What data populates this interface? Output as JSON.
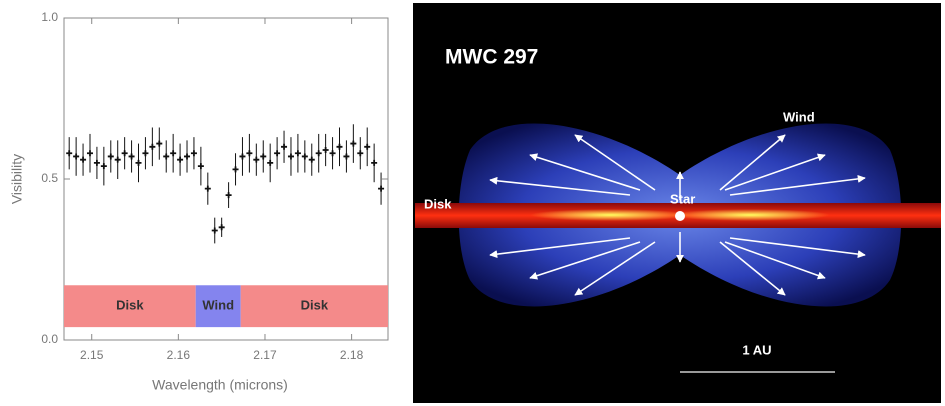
{
  "chart_data": {
    "type": "errorbar",
    "xlabel": "Wavelength (microns)",
    "ylabel": "Visibility",
    "xlim": [
      2.1468,
      2.1842
    ],
    "xticks": [
      2.15,
      2.16,
      2.17,
      2.18
    ],
    "ylim": [
      0,
      1
    ],
    "yticks": [
      {
        "value": 0,
        "label": "0.0"
      },
      0.5,
      {
        "value": 1,
        "label": "1.0"
      }
    ],
    "color": "#111111",
    "x": [
      2.1474,
      2.1482,
      2.149,
      2.1498,
      2.1506,
      2.1514,
      2.1522,
      2.153,
      2.1538,
      2.1546,
      2.1554,
      2.1562,
      2.157,
      2.1578,
      2.1586,
      2.1594,
      2.1602,
      2.161,
      2.1618,
      2.1626,
      2.1634,
      2.1642,
      2.165,
      2.1658,
      2.1666,
      2.1674,
      2.1682,
      2.169,
      2.1698,
      2.1706,
      2.1714,
      2.1722,
      2.173,
      2.1738,
      2.1746,
      2.1754,
      2.1762,
      2.177,
      2.1778,
      2.1786,
      2.1794,
      2.1802,
      2.181,
      2.1818,
      2.1826,
      2.1834
    ],
    "values": [
      0.58,
      0.57,
      0.56,
      0.58,
      0.55,
      0.54,
      0.57,
      0.56,
      0.58,
      0.57,
      0.55,
      0.58,
      0.6,
      0.61,
      0.57,
      0.58,
      0.56,
      0.57,
      0.58,
      0.54,
      0.47,
      0.34,
      0.35,
      0.45,
      0.53,
      0.57,
      0.58,
      0.56,
      0.57,
      0.55,
      0.58,
      0.6,
      0.57,
      0.58,
      0.57,
      0.56,
      0.58,
      0.59,
      0.58,
      0.6,
      0.57,
      0.61,
      0.58,
      0.6,
      0.55,
      0.47
    ],
    "errors": [
      0.05,
      0.06,
      0.05,
      0.06,
      0.05,
      0.06,
      0.05,
      0.06,
      0.05,
      0.05,
      0.06,
      0.05,
      0.06,
      0.05,
      0.05,
      0.06,
      0.05,
      0.05,
      0.05,
      0.06,
      0.05,
      0.04,
      0.03,
      0.04,
      0.05,
      0.06,
      0.06,
      0.05,
      0.05,
      0.06,
      0.05,
      0.05,
      0.06,
      0.06,
      0.05,
      0.05,
      0.06,
      0.05,
      0.05,
      0.06,
      0.05,
      0.06,
      0.05,
      0.06,
      0.06,
      0.05
    ],
    "region_ylim": [
      0.04,
      0.17
    ],
    "regions": [
      {
        "label": "Disk",
        "x": [
          2.1468,
          2.162
        ],
        "color": "#f48a8a"
      },
      {
        "label": "Wind",
        "x": [
          2.162,
          2.1672
        ],
        "color": "#8484ee"
      },
      {
        "label": "Disk",
        "x": [
          2.1672,
          2.1842
        ],
        "color": "#f48a8a"
      }
    ]
  },
  "illustration": {
    "title": "MWC 297",
    "wind_label": "Wind",
    "disk_label": "Disk",
    "star_label": "Star",
    "scale_label": "1 AU"
  }
}
